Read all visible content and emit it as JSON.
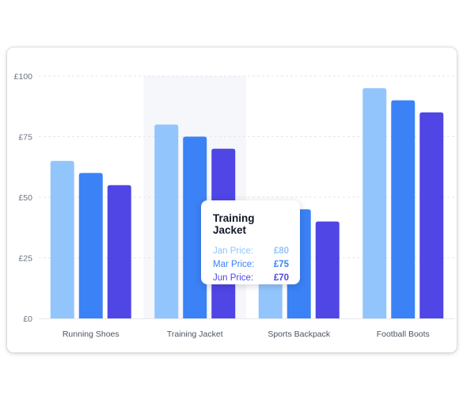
{
  "chart_data": {
    "type": "bar",
    "categories": [
      "Running Shoes",
      "Training Jacket",
      "Sports Backpack",
      "Football Boots"
    ],
    "series": [
      {
        "name": "Jan Price",
        "values": [
          65,
          80,
          45,
          95
        ],
        "color": "#93c5fd"
      },
      {
        "name": "Mar Price",
        "values": [
          60,
          75,
          45,
          90
        ],
        "color": "#3b82f6"
      },
      {
        "name": "Jun Price",
        "values": [
          55,
          70,
          40,
          85
        ],
        "color": "#4f46e5"
      }
    ],
    "ylim": [
      0,
      100
    ],
    "yticks": [
      0,
      25,
      50,
      75,
      100
    ],
    "ytick_labels": [
      "£0",
      "£25",
      "£50",
      "£75",
      "£100"
    ],
    "grid": "horizontal-dashed",
    "highlighted_category": "Training Jacket"
  },
  "tooltip": {
    "title": "Training Jacket",
    "rows": [
      {
        "label": "Jan Price:",
        "value": "£80",
        "color": "#93c5fd"
      },
      {
        "label": "Mar Price:",
        "value": "£75",
        "color": "#3b82f6"
      },
      {
        "label": "Jun Price:",
        "value": "£70",
        "color": "#4f46e5"
      }
    ]
  }
}
